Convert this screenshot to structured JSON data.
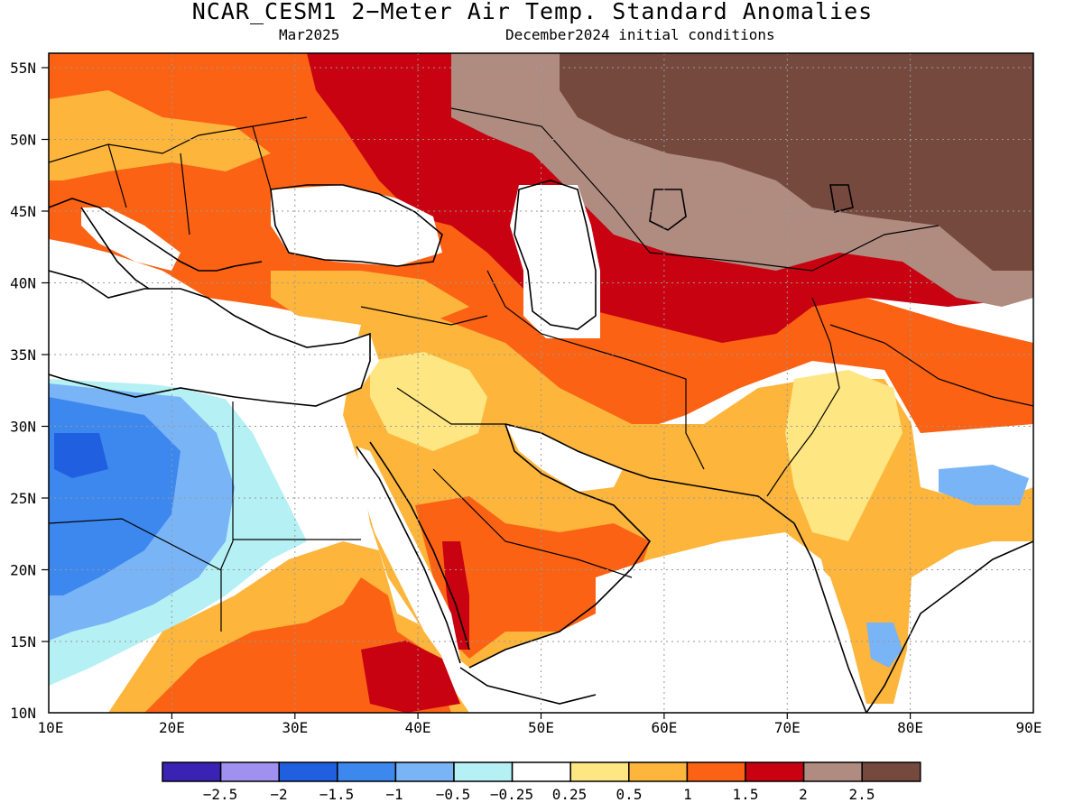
{
  "header": {
    "title": "NCAR_CESM1 2−Meter Air Temp. Standard Anomalies",
    "valid_month": "Mar2025",
    "init_conditions": "December2024 initial conditions"
  },
  "map": {
    "lat_labels": [
      "55N",
      "50N",
      "45N",
      "40N",
      "35N",
      "30N",
      "25N",
      "20N",
      "15N",
      "10N"
    ],
    "lon_labels": [
      "10E",
      "20E",
      "30E",
      "40E",
      "50E",
      "60E",
      "70E",
      "80E",
      "90E"
    ],
    "lat_values": [
      55,
      50,
      45,
      40,
      35,
      30,
      25,
      20,
      15,
      10
    ],
    "lon_values": [
      10,
      20,
      30,
      40,
      50,
      60,
      70,
      80,
      90
    ],
    "extent": {
      "lon_min": 10,
      "lon_max": 90,
      "lat_min": 10,
      "lat_max": 56
    },
    "gridlines": "dotted"
  },
  "legend": {
    "colors": [
      "#3a22b4",
      "#a090f0",
      "#2060e0",
      "#3c88ee",
      "#78b4f6",
      "#b4f0f4",
      "#ffffff",
      "#fee682",
      "#fdb53c",
      "#fb6214",
      "#c80210",
      "#b08c80",
      "#76493f"
    ],
    "labels": [
      "−2.5",
      "−2",
      "−1.5",
      "−1",
      "−0.5",
      "−0.25",
      "0.25",
      "0.5",
      "1",
      "1.5",
      "2",
      "2.5"
    ]
  }
}
